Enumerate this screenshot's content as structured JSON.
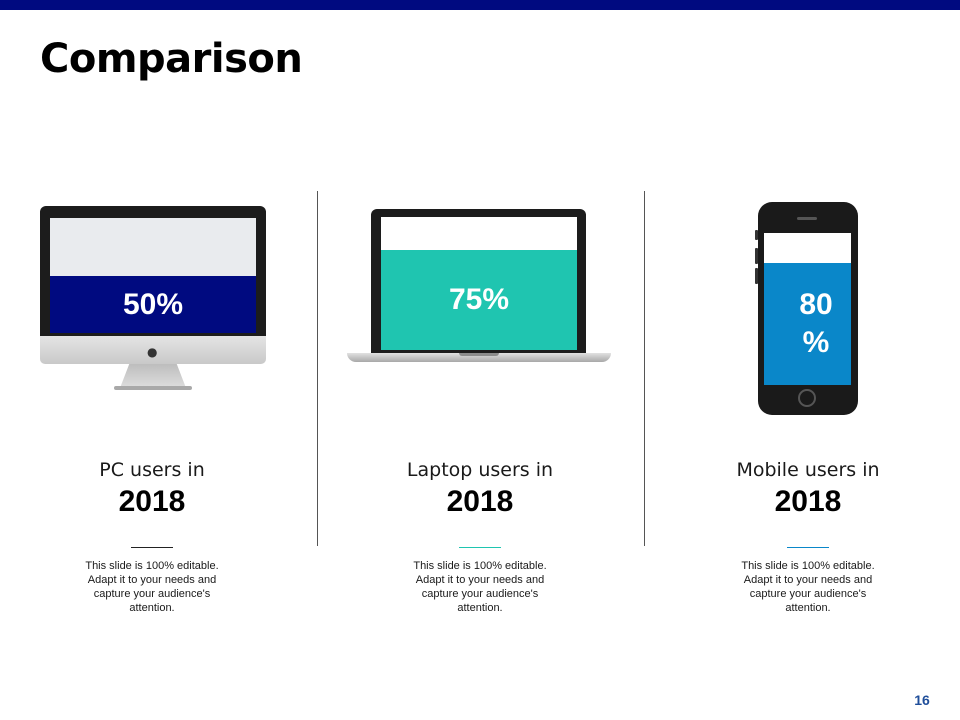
{
  "slide": {
    "title": "Comparison",
    "page_number": "16",
    "colors": {
      "top_bar": "#000a80",
      "page_number": "#1f4e9a"
    }
  },
  "devices": [
    {
      "device": "desktop-monitor",
      "percent_label": "50%",
      "percent_value": 50,
      "fill_color": "#000a80",
      "label": "PC users in",
      "year": "2018",
      "rule_color": "#222222",
      "description": "This slide is 100% editable. Adapt it to your needs and capture your audience's attention."
    },
    {
      "device": "laptop",
      "percent_label": "75%",
      "percent_value": 75,
      "fill_color": "#1fc5b0",
      "label": "Laptop users in",
      "year": "2018",
      "rule_color": "#1fc5b0",
      "description": "This slide is 100% editable. Adapt it to your needs and capture your audience's attention."
    },
    {
      "device": "mobile-phone",
      "percent_label": "80 %",
      "percent_value": 80,
      "fill_color": "#0a87c9",
      "label": "Mobile users in",
      "year": "2018",
      "rule_color": "#0a87c9",
      "description": "This slide is 100% editable. Adapt it to your needs and capture your audience's attention."
    }
  ]
}
